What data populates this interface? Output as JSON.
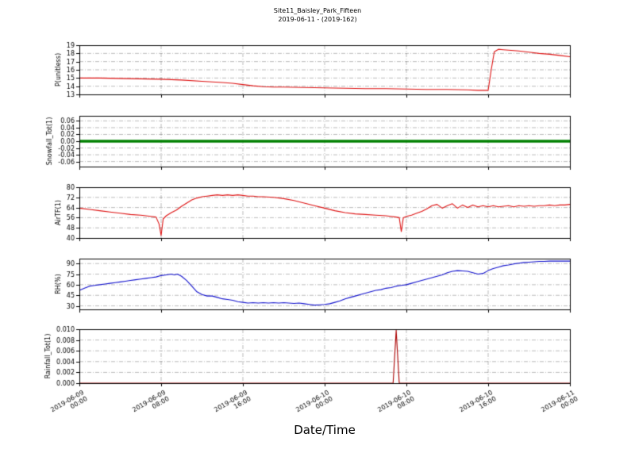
{
  "figure": {
    "title_line1": "Site11_Baisley_Park_Fifteen",
    "title_line2": "2019-06-11 - (2019-162)",
    "xlabel": "Date/Time",
    "background_color": "#ffffff"
  },
  "x_axis": {
    "range_hours": [
      0,
      48
    ],
    "tick_hours": [
      0,
      8,
      16,
      24,
      32,
      40,
      48
    ],
    "tick_labels": [
      "2019-06-09 00:00",
      "2019-06-09 08:00",
      "2019-06-09 16:00",
      "2019-06-10 00:00",
      "2019-06-10 08:00",
      "2019-06-10 16:00",
      "2019-06-11 00:00"
    ]
  },
  "chart_data": [
    {
      "type": "line",
      "name": "P",
      "ylabel": "P(unitless)",
      "color": "#dd1111",
      "linewidth": 1.1,
      "ylim": [
        13,
        19
      ],
      "yticks": [
        13,
        14,
        15,
        16,
        17,
        18,
        19
      ],
      "ytick_labels": [
        "13",
        "14",
        "15",
        "16",
        "17",
        "18",
        "19"
      ],
      "grid": true,
      "points": [
        [
          0,
          15.0
        ],
        [
          2,
          15.0
        ],
        [
          4,
          14.95
        ],
        [
          6,
          14.9
        ],
        [
          8,
          14.85
        ],
        [
          10,
          14.75
        ],
        [
          12,
          14.6
        ],
        [
          14,
          14.45
        ],
        [
          15,
          14.35
        ],
        [
          16,
          14.2
        ],
        [
          17,
          14.05
        ],
        [
          18,
          13.95
        ],
        [
          19,
          13.9
        ],
        [
          20,
          13.9
        ],
        [
          22,
          13.85
        ],
        [
          24,
          13.8
        ],
        [
          26,
          13.75
        ],
        [
          28,
          13.7
        ],
        [
          30,
          13.7
        ],
        [
          32,
          13.65
        ],
        [
          34,
          13.6
        ],
        [
          36,
          13.6
        ],
        [
          38,
          13.55
        ],
        [
          39,
          13.5
        ],
        [
          40,
          13.5
        ],
        [
          40.3,
          16.0
        ],
        [
          40.6,
          18.2
        ],
        [
          41,
          18.5
        ],
        [
          41.5,
          18.45
        ],
        [
          42,
          18.4
        ],
        [
          43,
          18.3
        ],
        [
          44,
          18.15
        ],
        [
          45,
          18.0
        ],
        [
          46,
          17.9
        ],
        [
          47,
          17.75
        ],
        [
          48,
          17.6
        ]
      ]
    },
    {
      "type": "line",
      "name": "Snowfall",
      "ylabel": "Snowfall_Tot(1)",
      "color": "#008000",
      "linewidth": 3.5,
      "ylim": [
        -0.075,
        0.075
      ],
      "yticks": [
        -0.06,
        -0.04,
        -0.02,
        0,
        0.02,
        0.04,
        0.06
      ],
      "ytick_labels": [
        "-0.06",
        "-0.04",
        "-0.02",
        "0.00",
        "0.02",
        "0.04",
        "0.06"
      ],
      "grid": true,
      "points": [
        [
          0,
          0
        ],
        [
          48,
          0
        ]
      ]
    },
    {
      "type": "line",
      "name": "AirTF",
      "ylabel": "AirTF(1)",
      "color": "#dd1111",
      "linewidth": 1.1,
      "ylim": [
        40,
        80
      ],
      "yticks": [
        40,
        48,
        56,
        64,
        72,
        80
      ],
      "ytick_labels": [
        "40",
        "48",
        "56",
        "64",
        "72",
        "80"
      ],
      "grid": true,
      "points": [
        [
          0,
          63.5
        ],
        [
          1,
          62.5
        ],
        [
          2,
          61.5
        ],
        [
          3,
          60.5
        ],
        [
          4,
          59.5
        ],
        [
          5,
          58.5
        ],
        [
          6,
          58
        ],
        [
          7,
          57
        ],
        [
          7.5,
          56.5
        ],
        [
          7.8,
          51
        ],
        [
          8,
          42
        ],
        [
          8.2,
          55
        ],
        [
          8.5,
          57.5
        ],
        [
          9,
          60
        ],
        [
          9.5,
          62
        ],
        [
          10,
          65
        ],
        [
          10.5,
          67.5
        ],
        [
          11,
          70
        ],
        [
          11.5,
          71.5
        ],
        [
          12,
          72.5
        ],
        [
          12.5,
          73
        ],
        [
          13,
          73.5
        ],
        [
          13.5,
          74
        ],
        [
          14,
          73.5
        ],
        [
          14.5,
          74
        ],
        [
          15,
          73.5
        ],
        [
          15.5,
          74
        ],
        [
          16,
          73.5
        ],
        [
          16.5,
          73
        ],
        [
          17,
          73
        ],
        [
          17.5,
          72.5
        ],
        [
          18,
          72.5
        ],
        [
          19,
          72
        ],
        [
          20,
          71
        ],
        [
          21,
          69.5
        ],
        [
          22,
          67.5
        ],
        [
          23,
          65.5
        ],
        [
          24,
          63.5
        ],
        [
          25,
          61.5
        ],
        [
          26,
          60
        ],
        [
          27,
          59
        ],
        [
          28,
          58.5
        ],
        [
          29,
          58
        ],
        [
          30,
          57.5
        ],
        [
          30.5,
          57
        ],
        [
          31,
          56.5
        ],
        [
          31.3,
          56
        ],
        [
          31.5,
          45
        ],
        [
          31.7,
          56
        ],
        [
          32,
          57
        ],
        [
          32.5,
          58
        ],
        [
          33,
          59.5
        ],
        [
          33.5,
          61
        ],
        [
          34,
          63
        ],
        [
          34.5,
          65.5
        ],
        [
          35,
          66.5
        ],
        [
          35.5,
          63.5
        ],
        [
          36,
          65.5
        ],
        [
          36.5,
          67
        ],
        [
          37,
          63.5
        ],
        [
          37.5,
          66
        ],
        [
          38,
          64
        ],
        [
          38.5,
          66
        ],
        [
          39,
          64.5
        ],
        [
          39.5,
          65.5
        ],
        [
          40,
          64.5
        ],
        [
          40.5,
          65.5
        ],
        [
          41,
          64.5
        ],
        [
          41.5,
          65
        ],
        [
          42,
          65.5
        ],
        [
          42.5,
          64.5
        ],
        [
          43,
          65.5
        ],
        [
          43.5,
          65
        ],
        [
          44,
          65.5
        ],
        [
          44.5,
          65
        ],
        [
          45,
          65.5
        ],
        [
          45.5,
          65.5
        ],
        [
          46,
          66
        ],
        [
          46.5,
          65.5
        ],
        [
          47,
          66
        ],
        [
          47.5,
          66
        ],
        [
          48,
          66.5
        ]
      ]
    },
    {
      "type": "line",
      "name": "RH",
      "ylabel": "RH(%)",
      "color": "#1111cc",
      "linewidth": 1.1,
      "ylim": [
        25,
        97
      ],
      "yticks": [
        30,
        45,
        60,
        75,
        90
      ],
      "ytick_labels": [
        "30",
        "45",
        "60",
        "75",
        "90"
      ],
      "grid": true,
      "points": [
        [
          0,
          52
        ],
        [
          0.5,
          55
        ],
        [
          1,
          58
        ],
        [
          1.5,
          59
        ],
        [
          2,
          60
        ],
        [
          2.5,
          61
        ],
        [
          3,
          62
        ],
        [
          3.5,
          63
        ],
        [
          4,
          64
        ],
        [
          4.5,
          65
        ],
        [
          5,
          66
        ],
        [
          5.5,
          67
        ],
        [
          6,
          68
        ],
        [
          6.5,
          69
        ],
        [
          7,
          70
        ],
        [
          7.5,
          71
        ],
        [
          8,
          73
        ],
        [
          8.5,
          74
        ],
        [
          9,
          75
        ],
        [
          9.3,
          74
        ],
        [
          9.6,
          75
        ],
        [
          10,
          72
        ],
        [
          10.5,
          66
        ],
        [
          11,
          58
        ],
        [
          11.5,
          50
        ],
        [
          12,
          46
        ],
        [
          12.5,
          44
        ],
        [
          13,
          44
        ],
        [
          13.5,
          42
        ],
        [
          14,
          40
        ],
        [
          14.5,
          39
        ],
        [
          15,
          38
        ],
        [
          15.5,
          36
        ],
        [
          16,
          35
        ],
        [
          16.5,
          34
        ],
        [
          17,
          34.5
        ],
        [
          17.5,
          34
        ],
        [
          18,
          34.5
        ],
        [
          18.5,
          34
        ],
        [
          19,
          34.5
        ],
        [
          19.5,
          34
        ],
        [
          20,
          34.5
        ],
        [
          20.5,
          34
        ],
        [
          21,
          33.5
        ],
        [
          21.5,
          34
        ],
        [
          22,
          33
        ],
        [
          22.5,
          32
        ],
        [
          23,
          31
        ],
        [
          23.5,
          31.5
        ],
        [
          24,
          32
        ],
        [
          24.5,
          33
        ],
        [
          25,
          35
        ],
        [
          25.5,
          37
        ],
        [
          26,
          40
        ],
        [
          26.5,
          42
        ],
        [
          27,
          44
        ],
        [
          27.5,
          46
        ],
        [
          28,
          48
        ],
        [
          28.5,
          50
        ],
        [
          29,
          52
        ],
        [
          29.5,
          53
        ],
        [
          30,
          55
        ],
        [
          30.5,
          56
        ],
        [
          31,
          58
        ],
        [
          31.5,
          59
        ],
        [
          32,
          60
        ],
        [
          32.5,
          62
        ],
        [
          33,
          64
        ],
        [
          33.5,
          66
        ],
        [
          34,
          68
        ],
        [
          34.5,
          70
        ],
        [
          35,
          72
        ],
        [
          35.5,
          74
        ],
        [
          36,
          77
        ],
        [
          36.5,
          79
        ],
        [
          37,
          80
        ],
        [
          37.5,
          79.5
        ],
        [
          38,
          79
        ],
        [
          38.5,
          77
        ],
        [
          39,
          75
        ],
        [
          39.5,
          76
        ],
        [
          40,
          80
        ],
        [
          40.5,
          83
        ],
        [
          41,
          85
        ],
        [
          41.5,
          87
        ],
        [
          42,
          88
        ],
        [
          42.5,
          89.5
        ],
        [
          43,
          90.5
        ],
        [
          43.5,
          91.5
        ],
        [
          44,
          92
        ],
        [
          44.5,
          92.5
        ],
        [
          45,
          93
        ],
        [
          45.5,
          93
        ],
        [
          46,
          93.5
        ],
        [
          46.5,
          93.5
        ],
        [
          47,
          93.5
        ],
        [
          47.5,
          93.5
        ],
        [
          48,
          93.5
        ]
      ]
    },
    {
      "type": "line",
      "name": "Rainfall",
      "ylabel": "Rainfall_Tot(1)",
      "color": "#aa0000",
      "linewidth": 1.1,
      "ylim": [
        0,
        0.01
      ],
      "yticks": [
        0,
        0.002,
        0.004,
        0.006,
        0.008,
        0.01
      ],
      "ytick_labels": [
        "0.000",
        "0.002",
        "0.004",
        "0.006",
        "0.008",
        "0.010"
      ],
      "grid": true,
      "points": [
        [
          0,
          0
        ],
        [
          30.7,
          0
        ],
        [
          31,
          0.0098
        ],
        [
          31.3,
          0
        ],
        [
          48,
          0
        ]
      ]
    }
  ]
}
